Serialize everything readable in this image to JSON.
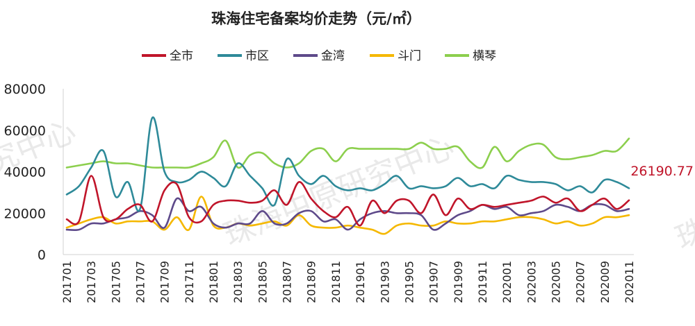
{
  "chart_data": {
    "type": "line",
    "title": "珠海住宅备案均价走势（元/㎡）",
    "ylim": [
      0,
      80000
    ],
    "yticks": [
      0,
      20000,
      40000,
      60000,
      80000
    ],
    "x": [
      "201701",
      "201702",
      "201703",
      "201704",
      "201705",
      "201706",
      "201707",
      "201708",
      "201709",
      "201710",
      "201711",
      "201712",
      "201801",
      "201802",
      "201803",
      "201804",
      "201805",
      "201806",
      "201807",
      "201808",
      "201809",
      "201810",
      "201811",
      "201812",
      "201901",
      "201902",
      "201903",
      "201904",
      "201905",
      "201906",
      "201907",
      "201908",
      "201909",
      "201910",
      "201911",
      "201912",
      "202001",
      "202002",
      "202003",
      "202004",
      "202005",
      "202006",
      "202007",
      "202008",
      "202009",
      "202010",
      "202011"
    ],
    "xtick_labels": [
      "201701",
      "201703",
      "201705",
      "201707",
      "201709",
      "201711",
      "201801",
      "201803",
      "201805",
      "201807",
      "201809",
      "201811",
      "201901",
      "201903",
      "201905",
      "201907",
      "201909",
      "201911",
      "202001",
      "202003",
      "202005",
      "202007",
      "202009",
      "202011"
    ],
    "legend_position": "top-center",
    "grid": false,
    "series": [
      {
        "name": "全市",
        "color": "#c0152a",
        "values": [
          17000,
          16000,
          38000,
          18000,
          17000,
          22000,
          24000,
          16000,
          31000,
          34000,
          18000,
          16000,
          24000,
          26000,
          26000,
          25000,
          26000,
          31000,
          24000,
          35000,
          27000,
          21000,
          18000,
          23000,
          14000,
          26000,
          20000,
          26000,
          26000,
          20000,
          29000,
          19000,
          27000,
          22000,
          24000,
          23000,
          24000,
          25000,
          26000,
          28000,
          25000,
          27000,
          21000,
          24000,
          27000,
          22000,
          26190.77
        ]
      },
      {
        "name": "市区",
        "color": "#2e8a99",
        "values": [
          29000,
          33000,
          42000,
          50000,
          28000,
          35000,
          22000,
          66000,
          40000,
          35000,
          36000,
          40000,
          37000,
          33000,
          44000,
          38000,
          32000,
          24000,
          46000,
          38000,
          34000,
          38000,
          33000,
          31000,
          32000,
          31000,
          34000,
          38000,
          32000,
          33000,
          32000,
          33000,
          37000,
          33000,
          34000,
          32000,
          38000,
          36000,
          35000,
          35000,
          34000,
          31000,
          33000,
          30000,
          36000,
          35000,
          32000
        ]
      },
      {
        "name": "金湾",
        "color": "#5e4a8a",
        "values": [
          12000,
          12000,
          15000,
          15000,
          17000,
          18000,
          21000,
          19000,
          13000,
          27000,
          21000,
          23000,
          15000,
          13000,
          15000,
          15000,
          21000,
          15000,
          15000,
          20000,
          21000,
          16000,
          17000,
          12000,
          17000,
          20000,
          21000,
          20000,
          20000,
          19000,
          12000,
          15000,
          19000,
          21000,
          24000,
          22000,
          23000,
          19000,
          20000,
          21000,
          24000,
          23000,
          21000,
          24000,
          24000,
          21000,
          22000
        ]
      },
      {
        "name": "斗门",
        "color": "#f5b800",
        "values": [
          13000,
          15000,
          17000,
          18000,
          15000,
          16000,
          16000,
          16000,
          12000,
          18000,
          12000,
          28000,
          14000,
          13000,
          15000,
          14000,
          15000,
          16000,
          14000,
          19000,
          14000,
          13000,
          13000,
          14000,
          13000,
          12000,
          10000,
          14000,
          15000,
          14000,
          14000,
          16000,
          15000,
          15000,
          16000,
          16000,
          17000,
          18000,
          18000,
          17000,
          15000,
          16000,
          14000,
          15000,
          18000,
          18000,
          19000
        ]
      },
      {
        "name": "横琴",
        "color": "#8ccf4d",
        "values": [
          42000,
          43000,
          44000,
          45000,
          44000,
          44000,
          43000,
          42000,
          42000,
          42000,
          42000,
          44000,
          47000,
          55000,
          42000,
          48000,
          49000,
          44000,
          42000,
          44000,
          50000,
          51000,
          45000,
          51000,
          51000,
          51000,
          51000,
          51000,
          51000,
          54000,
          51000,
          51000,
          52000,
          45000,
          42000,
          52000,
          45000,
          50000,
          53000,
          53000,
          47000,
          46000,
          47000,
          48000,
          50000,
          50000,
          56000
        ]
      }
    ],
    "annotation": {
      "text": "26190.77",
      "series": "全市",
      "index": 46,
      "color": "#c0152a"
    }
  },
  "watermark": {
    "text": "珠海中原研究中心",
    "text_right": "珠",
    "text_left": "究中心"
  }
}
